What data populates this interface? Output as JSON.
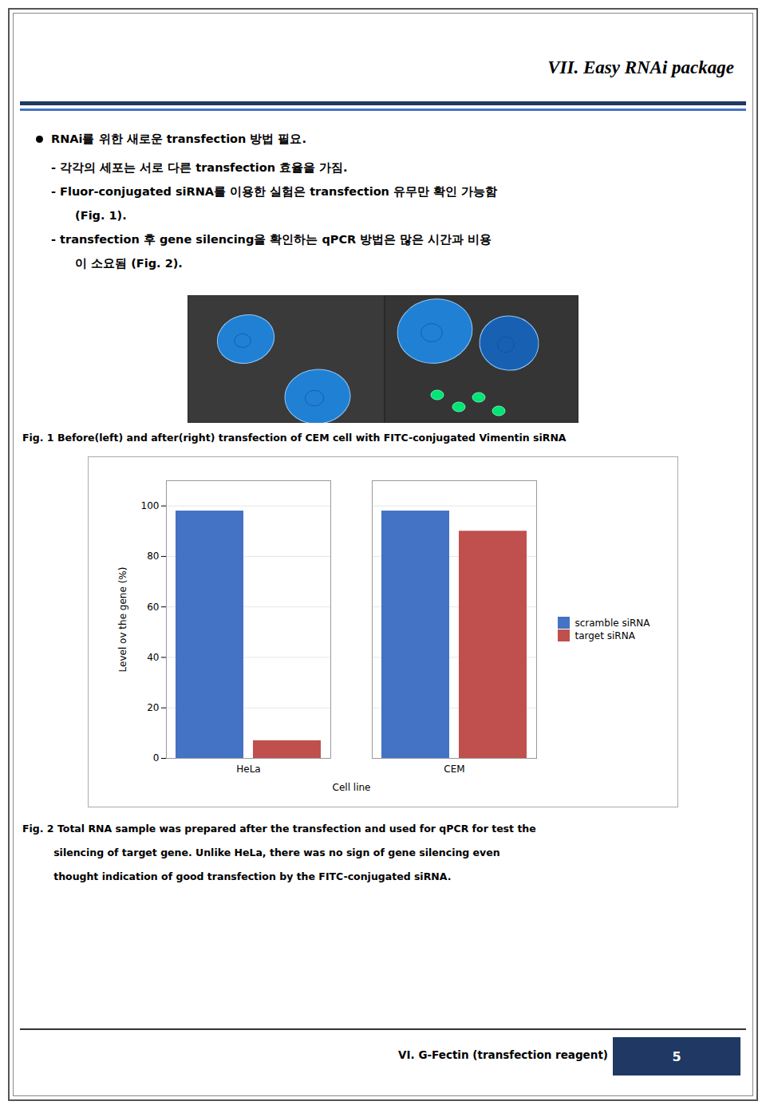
{
  "chart_data": {
    "type": "bar",
    "title": "VII. Easy RNAi package",
    "categories": [
      "HeLa",
      "CEM"
    ],
    "series": [
      {
        "name": "scramble siRNA",
        "color": "#4472c4",
        "values": [
          98,
          98
        ]
      },
      {
        "name": "target siRNA",
        "color": "#c0504d",
        "values": [
          7,
          90
        ]
      }
    ],
    "xlabel": "Cell line",
    "ylabel": "Level ov the gene (%)",
    "ylim": [
      0,
      110
    ],
    "yticks": [
      0,
      20,
      40,
      60,
      80,
      100
    ],
    "grid": true,
    "legend": "right",
    "annotations": [
      "RNAi를 위한 새로운 transfection 방법 필요.",
      "- 각각의 세포는 서로 다른 transfection 효율을 가짐.",
      "- Fluor-conjugated siRNA를 이용한 실험은 transfection 유무만 확인 가능함",
      "  (Fig. 1).",
      "- transfection 후 gene silencing을 확인하는 qPCR 방법은 많은 시간과 비용",
      "  이 소요됨 (Fig. 2).",
      "Fig. 1 Before(left) and after(right) transfection of CEM cell with FITC-conjugated Vimentin siRNA",
      "Fig. 2 Total RNA sample was prepared after the transfection and used for qPCR for test the",
      "         silencing of target gene. Unlike HeLa, there was no sign of gene silencing even",
      "         thought indication of good transfection by the FITC-conjugated siRNA.",
      "VI. G-Fectin (transfection reagent)",
      "5"
    ]
  }
}
